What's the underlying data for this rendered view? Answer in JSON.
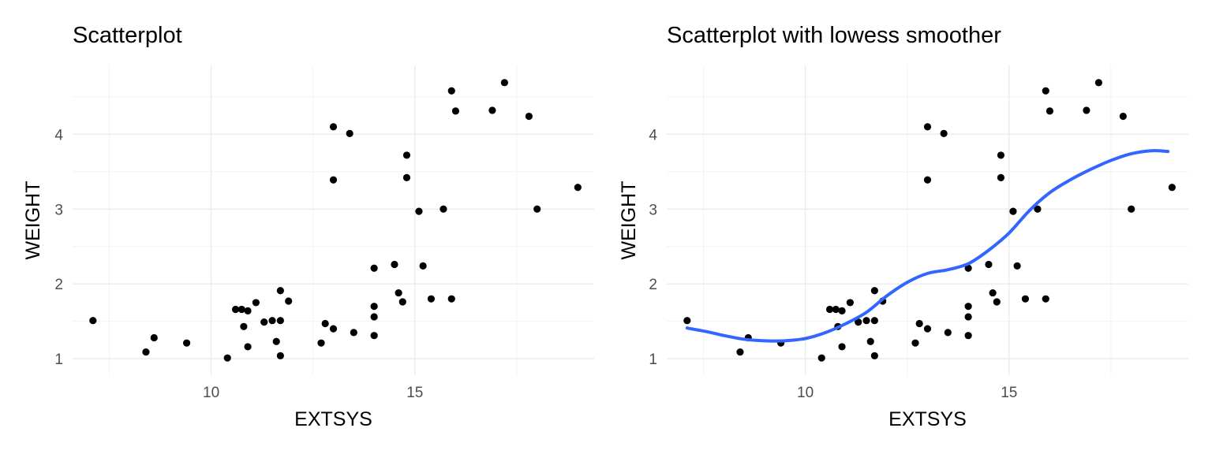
{
  "chart_data": [
    {
      "type": "scatter",
      "title": "Scatterplot",
      "xlabel": "EXTSYS",
      "ylabel": "WEIGHT",
      "xlim": [
        6.6,
        19.4
      ],
      "ylim": [
        0.78,
        4.92
      ],
      "xticks": [
        10,
        15
      ],
      "yticks": [
        1,
        2,
        3,
        4
      ],
      "grid": true,
      "legend": "none",
      "points": [
        [
          7.1,
          1.51
        ],
        [
          8.4,
          1.09
        ],
        [
          8.6,
          1.28
        ],
        [
          9.4,
          1.21
        ],
        [
          10.4,
          1.01
        ],
        [
          10.6,
          1.66
        ],
        [
          10.75,
          1.66
        ],
        [
          10.8,
          1.43
        ],
        [
          10.9,
          1.64
        ],
        [
          10.9,
          1.16
        ],
        [
          11.1,
          1.75
        ],
        [
          11.3,
          1.49
        ],
        [
          11.5,
          1.51
        ],
        [
          11.6,
          1.23
        ],
        [
          11.7,
          1.51
        ],
        [
          11.7,
          1.91
        ],
        [
          11.7,
          1.04
        ],
        [
          11.9,
          1.77
        ],
        [
          12.7,
          1.21
        ],
        [
          12.8,
          1.47
        ],
        [
          13.0,
          1.4
        ],
        [
          13.0,
          4.1
        ],
        [
          13.0,
          3.39
        ],
        [
          13.4,
          4.01
        ],
        [
          13.5,
          1.35
        ],
        [
          14.0,
          2.21
        ],
        [
          14.0,
          1.7
        ],
        [
          14.0,
          1.56
        ],
        [
          14.0,
          1.31
        ],
        [
          14.5,
          2.26
        ],
        [
          14.6,
          1.88
        ],
        [
          14.7,
          1.76
        ],
        [
          14.8,
          3.72
        ],
        [
          14.8,
          3.42
        ],
        [
          15.1,
          2.97
        ],
        [
          15.2,
          2.24
        ],
        [
          15.4,
          1.8
        ],
        [
          15.7,
          3.0
        ],
        [
          15.9,
          4.58
        ],
        [
          15.9,
          1.8
        ],
        [
          16.0,
          4.31
        ],
        [
          16.9,
          4.32
        ],
        [
          17.2,
          4.69
        ],
        [
          17.8,
          4.24
        ],
        [
          18.0,
          3.0
        ],
        [
          19.0,
          3.29
        ]
      ]
    },
    {
      "type": "scatter",
      "title": "Scatterplot with lowess smoother",
      "xlabel": "EXTSYS",
      "ylabel": "WEIGHT",
      "xlim": [
        6.6,
        19.4
      ],
      "ylim": [
        0.78,
        4.92
      ],
      "xticks": [
        10,
        15
      ],
      "yticks": [
        1,
        2,
        3,
        4
      ],
      "grid": true,
      "legend": "none",
      "smoother_color": "#3366ff",
      "points": [
        [
          7.1,
          1.51
        ],
        [
          8.4,
          1.09
        ],
        [
          8.6,
          1.28
        ],
        [
          9.4,
          1.21
        ],
        [
          10.4,
          1.01
        ],
        [
          10.6,
          1.66
        ],
        [
          10.75,
          1.66
        ],
        [
          10.8,
          1.43
        ],
        [
          10.9,
          1.64
        ],
        [
          10.9,
          1.16
        ],
        [
          11.1,
          1.75
        ],
        [
          11.3,
          1.49
        ],
        [
          11.5,
          1.51
        ],
        [
          11.6,
          1.23
        ],
        [
          11.7,
          1.51
        ],
        [
          11.7,
          1.91
        ],
        [
          11.7,
          1.04
        ],
        [
          11.9,
          1.77
        ],
        [
          12.7,
          1.21
        ],
        [
          12.8,
          1.47
        ],
        [
          13.0,
          1.4
        ],
        [
          13.0,
          4.1
        ],
        [
          13.0,
          3.39
        ],
        [
          13.4,
          4.01
        ],
        [
          13.5,
          1.35
        ],
        [
          14.0,
          2.21
        ],
        [
          14.0,
          1.7
        ],
        [
          14.0,
          1.56
        ],
        [
          14.0,
          1.31
        ],
        [
          14.5,
          2.26
        ],
        [
          14.6,
          1.88
        ],
        [
          14.7,
          1.76
        ],
        [
          14.8,
          3.72
        ],
        [
          14.8,
          3.42
        ],
        [
          15.1,
          2.97
        ],
        [
          15.2,
          2.24
        ],
        [
          15.4,
          1.8
        ],
        [
          15.7,
          3.0
        ],
        [
          15.9,
          4.58
        ],
        [
          15.9,
          1.8
        ],
        [
          16.0,
          4.31
        ],
        [
          16.9,
          4.32
        ],
        [
          17.2,
          4.69
        ],
        [
          17.8,
          4.24
        ],
        [
          18.0,
          3.0
        ],
        [
          19.0,
          3.29
        ]
      ],
      "smoother": [
        [
          7.1,
          1.41
        ],
        [
          7.6,
          1.36
        ],
        [
          8.0,
          1.31
        ],
        [
          8.5,
          1.26
        ],
        [
          9.0,
          1.24
        ],
        [
          9.5,
          1.24
        ],
        [
          10.0,
          1.27
        ],
        [
          10.5,
          1.35
        ],
        [
          11.0,
          1.47
        ],
        [
          11.5,
          1.62
        ],
        [
          12.0,
          1.84
        ],
        [
          12.5,
          2.02
        ],
        [
          13.0,
          2.14
        ],
        [
          13.5,
          2.19
        ],
        [
          14.0,
          2.27
        ],
        [
          14.5,
          2.45
        ],
        [
          15.0,
          2.68
        ],
        [
          15.5,
          2.98
        ],
        [
          16.0,
          3.22
        ],
        [
          16.5,
          3.39
        ],
        [
          17.0,
          3.53
        ],
        [
          17.5,
          3.65
        ],
        [
          18.0,
          3.74
        ],
        [
          18.5,
          3.78
        ],
        [
          18.9,
          3.77
        ]
      ]
    }
  ]
}
